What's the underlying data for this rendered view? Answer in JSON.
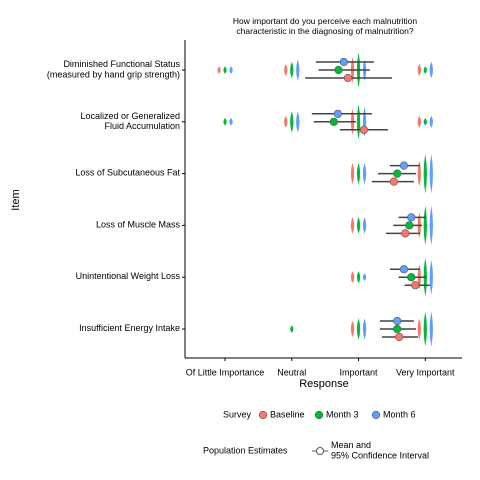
{
  "chart_data": {
    "type": "dot",
    "title": "How important do you perceive each malnutrition\ncharacteristic in the diagnosing of malnutrition?",
    "x_label": "Response",
    "y_label": "Item",
    "categories": [
      "Diminished Functional Status\n(measured by hand grip strength)",
      "Localized or Generalized\nFluid Accumulation",
      "Loss of Subcutaneous Fat",
      "Loss of Muscle Mass",
      "Unintentional Weight Loss",
      "Insufficient Energy Intake"
    ],
    "xlim": [
      0.4,
      4.55
    ],
    "xticks": [
      {
        "value": 1,
        "label": "Of Little Importance"
      },
      {
        "value": 2,
        "label": "Neutral"
      },
      {
        "value": 3,
        "label": "Important"
      },
      {
        "value": 4,
        "label": "Very Important"
      }
    ],
    "legend_title": "Survey",
    "estimate_legend_title": "Population Estimates",
    "estimate_legend_label": "Mean and\n95% Confidence Interval",
    "series": [
      {
        "name": "Baseline",
        "color": "#F8766D",
        "means": [
          2.84,
          3.08,
          3.53,
          3.7,
          3.85,
          3.61
        ],
        "ci_low": [
          2.2,
          2.72,
          3.2,
          3.41,
          3.69,
          3.35
        ],
        "ci_high": [
          3.5,
          3.44,
          3.83,
          3.92,
          4.07,
          3.89
        ],
        "counts": [
          [
            1,
            2,
            5,
            2
          ],
          [
            0,
            2,
            5,
            2
          ],
          [
            0,
            0,
            4,
            5
          ],
          [
            0,
            0,
            3,
            5
          ],
          [
            0,
            0,
            2,
            5
          ],
          [
            0,
            0,
            3,
            4
          ]
        ]
      },
      {
        "name": "Month 3",
        "color": "#00BA38",
        "means": [
          2.7,
          2.63,
          3.58,
          3.76,
          3.79,
          3.58
        ],
        "ci_low": [
          2.4,
          2.33,
          3.29,
          3.52,
          3.6,
          3.32
        ],
        "ci_high": [
          3.17,
          2.96,
          3.86,
          3.95,
          4.01,
          3.86
        ],
        "counts": [
          [
            1,
            3,
            7,
            1
          ],
          [
            1,
            4,
            7,
            1
          ],
          [
            0,
            0,
            4,
            8
          ],
          [
            0,
            0,
            3,
            8
          ],
          [
            0,
            0,
            2,
            8
          ],
          [
            0,
            1,
            4,
            7
          ]
        ]
      },
      {
        "name": "Month 6",
        "color": "#619CFF",
        "means": [
          2.78,
          2.69,
          3.68,
          3.79,
          3.68,
          3.58
        ],
        "ci_low": [
          2.36,
          2.3,
          3.47,
          3.6,
          3.47,
          3.32
        ],
        "ci_high": [
          3.23,
          3.2,
          3.92,
          4.01,
          3.92,
          3.83
        ],
        "counts": [
          [
            1,
            4,
            4,
            3
          ],
          [
            1,
            4,
            6,
            2
          ],
          [
            0,
            0,
            4,
            8
          ],
          [
            0,
            0,
            3,
            8
          ],
          [
            0,
            0,
            1,
            7
          ],
          [
            0,
            0,
            4,
            7
          ]
        ]
      }
    ]
  }
}
